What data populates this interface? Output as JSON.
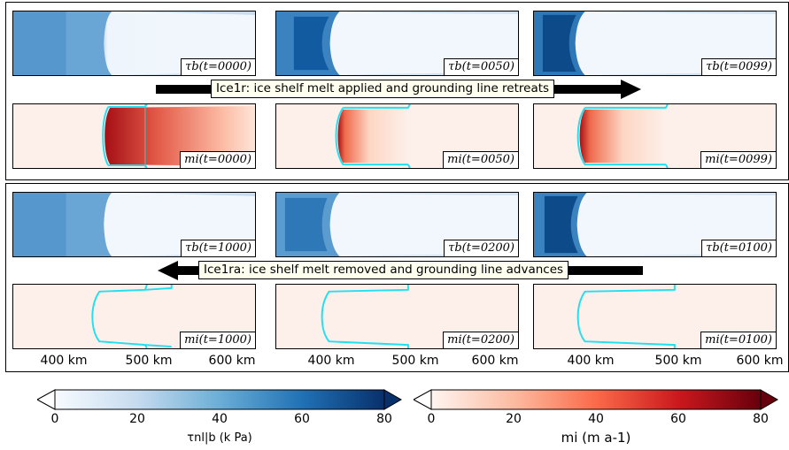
{
  "banners": {
    "retreat": "Ice1r: ice shelf melt applied and grounding line retreats",
    "advance": "Ice1ra: ice shelf melt removed and grounding line advances"
  },
  "panels": {
    "r1": [
      "τb(t=0000)",
      "τb(t=0050)",
      "τb(t=0099)"
    ],
    "r2": [
      "mi(t=0000)",
      "mi(t=0050)",
      "mi(t=0099)"
    ],
    "r3": [
      "τb(t=1000)",
      "τb(t=0200)",
      "τb(t=0100)"
    ],
    "r4": [
      "mi(t=1000)",
      "mi(t=0200)",
      "mi(t=0100)"
    ]
  },
  "x_axis": {
    "ticks": [
      "400 km",
      "500 km",
      "600 km"
    ]
  },
  "colorbars": {
    "tau": {
      "ticks": [
        "0",
        "20",
        "40",
        "60",
        "80"
      ],
      "label": "τnl|b (k Pa)",
      "cmap": "Blues"
    },
    "melt": {
      "ticks": [
        "0",
        "20",
        "40",
        "60",
        "80"
      ],
      "label": "mi (m a-1)",
      "cmap": "Reds"
    }
  },
  "colors": {
    "grounding_line": "#22e0f0",
    "blue_dark": "#08306b",
    "blue_light": "#f1f6fd",
    "red_dark": "#67000d",
    "red_light": "#fdf0ea"
  }
}
